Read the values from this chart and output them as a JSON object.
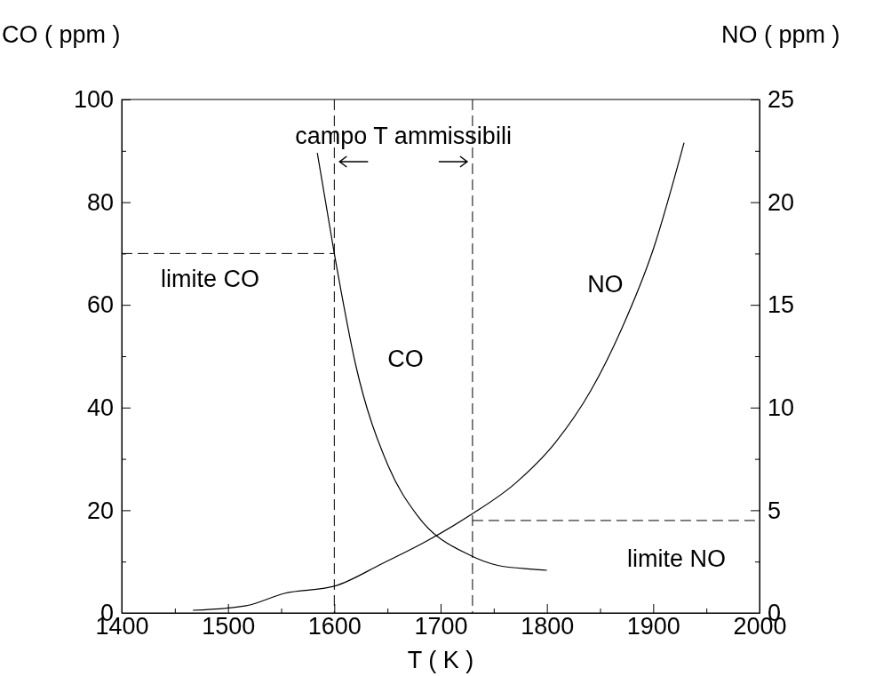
{
  "chart_data": {
    "type": "line",
    "xlabel": "T ( K )",
    "ylabel": "CO ( ppm )",
    "y2label": "NO ( ppm )",
    "xlim": [
      1400,
      2000
    ],
    "xticks": [
      1400,
      {
        "value": 1450,
        "label": null
      },
      1500,
      {
        "value": 1550,
        "label": null
      },
      1600,
      {
        "value": 1650,
        "label": null
      },
      1700,
      {
        "value": 1750,
        "label": null
      },
      1800,
      {
        "value": 1850,
        "label": null
      },
      1900,
      {
        "value": 1950,
        "label": null
      },
      2000
    ],
    "ylim": [
      0,
      100
    ],
    "yticks": [
      0,
      {
        "value": 10,
        "label": null
      },
      20,
      {
        "value": 30,
        "label": null
      },
      40,
      {
        "value": 50,
        "label": null
      },
      60,
      {
        "value": 70,
        "label": null
      },
      80,
      {
        "value": 90,
        "label": null
      },
      100
    ],
    "y2lim": [
      0,
      25
    ],
    "y2ticks": [
      0,
      {
        "value": 2.5,
        "label": null
      },
      5,
      {
        "value": 7.5,
        "label": null
      },
      10,
      {
        "value": 12.5,
        "label": null
      },
      15,
      {
        "value": 17.5,
        "label": null
      },
      20,
      {
        "value": 22.5,
        "label": null
      },
      25
    ],
    "grid": false,
    "marker": "none",
    "line_style": "solid",
    "series": [
      {
        "name": "CO",
        "color": "#000000",
        "x": [
          1584,
          1600,
          1620,
          1651,
          1678,
          1728,
          1753,
          1787,
          1800
        ],
        "values": [
          89.6,
          70,
          48.4,
          28.5,
          19,
          11.2,
          9.3,
          8.5,
          8.3
        ]
      },
      {
        "name": "NO",
        "color": "#000000",
        "axis": "y2",
        "x": [
          1467,
          1517,
          1553,
          1600,
          1645,
          1687,
          1729,
          1770,
          1808,
          1841,
          1870,
          1900,
          1929
        ],
        "values": [
          0.13,
          0.35,
          0.95,
          1.3,
          2.4,
          3.5,
          4.8,
          6.3,
          8.3,
          10.8,
          13.8,
          17.7,
          22.9
        ]
      }
    ],
    "ref_lines": [
      {
        "axis": "x",
        "value": 1600,
        "line_style": "dashed"
      },
      {
        "axis": "x",
        "value": 1730,
        "line_style": "dashed"
      },
      {
        "axis": "y",
        "value": 70,
        "label": "limite CO",
        "line_style": "dashed"
      },
      {
        "axis": "y2",
        "value": 4.5,
        "label": "limite NO",
        "line_style": "dashed"
      }
    ],
    "annotations": [
      "campo T ammissibili"
    ]
  }
}
